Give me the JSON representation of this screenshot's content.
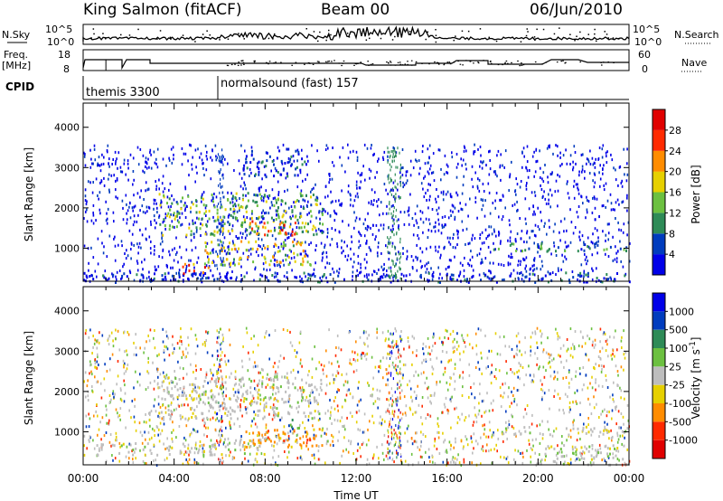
{
  "header": {
    "site": "King Salmon (fitACF)",
    "beam": "Beam 00",
    "date": "06/Jun/2010"
  },
  "params_panels": {
    "nsky_label": "N.Sky",
    "freq_label_line1": "Freq.",
    "freq_label_line2": "[MHz]",
    "cpid_label": "CPID",
    "nsearch_label": "N.Search",
    "nave_label": "Nave",
    "noise_ticks": [
      "10^5",
      "10^0"
    ],
    "freq_ticks": [
      "18",
      "8"
    ],
    "nave_ticks": [
      "60",
      "0"
    ],
    "cpid_segments": [
      {
        "text": "themis 3300",
        "start_hour": 0.0
      },
      {
        "text": "normalsound (fast) 157",
        "start_hour": 6.0
      }
    ]
  },
  "chart_data": [
    {
      "type": "heatmap",
      "title": "",
      "ylabel": "Slant Range [km]",
      "ylim": [
        180,
        4600
      ],
      "yticks": [
        1000,
        2000,
        3000,
        4000
      ],
      "xlim_hours": [
        0,
        24
      ],
      "colorbar": {
        "label": "Power [dB]",
        "ticks": [
          "4",
          "8",
          "12",
          "16",
          "20",
          "24",
          "28"
        ],
        "colors": [
          "#0000e8",
          "#003cbe",
          "#2e8b57",
          "#6cc040",
          "#e6d000",
          "#ff8c00",
          "#ff2a00",
          "#e00000"
        ]
      },
      "features": [
        {
          "name": "low",
          "t0": 0.0,
          "t1": 24.0,
          "r0": 180,
          "r1": 420,
          "level": 1
        },
        {
          "name": "arc_upper",
          "t0": 3.3,
          "t1": 10.5,
          "r0": 1350,
          "r1": 2400,
          "level": 3
        },
        {
          "name": "arc_core",
          "t0": 7.3,
          "t1": 9.3,
          "r0": 1350,
          "r1": 1700,
          "level": 6
        },
        {
          "name": "arc_lower",
          "t0": 5.3,
          "t1": 10.0,
          "r0": 600,
          "r1": 1200,
          "level": 4
        },
        {
          "name": "patch_early",
          "t0": 4.3,
          "t1": 5.5,
          "r0": 400,
          "r1": 650,
          "level": 6
        },
        {
          "name": "band_late",
          "t0": 18.0,
          "t1": 24.0,
          "r0": 950,
          "r1": 1150,
          "level": 2
        },
        {
          "name": "upper_sparse",
          "t0": 7.0,
          "t1": 9.8,
          "r0": 2800,
          "r1": 3450,
          "level": 1
        }
      ]
    },
    {
      "type": "heatmap",
      "title": "",
      "ylabel": "Slant Range [km]",
      "ylim": [
        180,
        4600
      ],
      "yticks": [
        1000,
        2000,
        3000,
        4000
      ],
      "xlim_hours": [
        0,
        24
      ],
      "xlabel": "Time UT",
      "xticks": [
        "00:00",
        "04:00",
        "08:00",
        "12:00",
        "16:00",
        "20:00",
        "00:00"
      ],
      "colorbar": {
        "label": "Velocity [m s^-1]",
        "ticks": [
          "1000",
          "500",
          "100",
          "25",
          "-25",
          "-100",
          "-500",
          "-1000"
        ],
        "colors": [
          "#0000e8",
          "#003cbe",
          "#2e8b57",
          "#6cc040",
          "#bdbdbd",
          "#e6d000",
          "#ff8c00",
          "#ff2a00",
          "#e00000"
        ]
      },
      "features": [
        {
          "name": "ground_scatter_arc",
          "t0": 3.3,
          "t1": 10.5,
          "r0": 1350,
          "r1": 2400,
          "level": "grey"
        },
        {
          "name": "ground_scatter_lower",
          "t0": 0.5,
          "t1": 6.0,
          "r0": 450,
          "r1": 750,
          "level": "grey"
        },
        {
          "name": "ground_scatter_mid",
          "t0": 5.5,
          "t1": 8.0,
          "r0": 450,
          "r1": 900,
          "level": "grey"
        },
        {
          "name": "neg_arc",
          "t0": 7.0,
          "t1": 10.5,
          "r0": 650,
          "r1": 1100,
          "level": "orange"
        },
        {
          "name": "pos_patch",
          "t0": 8.6,
          "t1": 9.6,
          "r0": 1100,
          "r1": 1350,
          "level": "green"
        },
        {
          "name": "late_band",
          "t0": 18.0,
          "t1": 24.0,
          "r0": 950,
          "r1": 1150,
          "level": "grey"
        },
        {
          "name": "late_low",
          "t0": 20.0,
          "t1": 24.0,
          "r0": 200,
          "r1": 700,
          "level": "grey"
        }
      ]
    }
  ]
}
